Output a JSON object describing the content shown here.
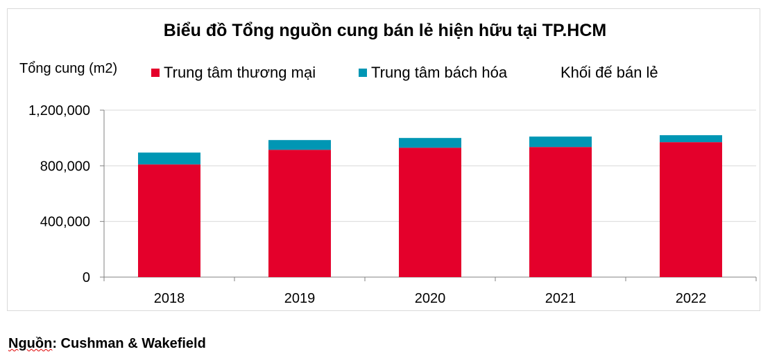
{
  "chart_data": {
    "type": "bar",
    "stacked": true,
    "title": "Biểu đồ Tổng nguồn cung bán lẻ hiện hữu tại TP.HCM",
    "ylabel": "Tổng cung (m2)",
    "xlabel": "",
    "categories": [
      "2018",
      "2019",
      "2020",
      "2021",
      "2022"
    ],
    "series": [
      {
        "name": "Trung tâm thương mại",
        "color": "#e4002b",
        "values": [
          810000,
          915000,
          930000,
          935000,
          970000
        ]
      },
      {
        "name": "Trung tâm bách hóa",
        "color": "#0096b4",
        "values": [
          85000,
          70000,
          70000,
          75000,
          50000
        ]
      },
      {
        "name": "Khối đế bán lẻ",
        "color": "#ffffff",
        "values": [
          0,
          0,
          0,
          0,
          0
        ]
      }
    ],
    "ylim": [
      0,
      1200000
    ],
    "yticks": [
      "0",
      "400,000",
      "800,000",
      "1,200,000"
    ],
    "grid": true,
    "legend_position": "top"
  },
  "source": {
    "label_underlined": "Nguồn",
    "label_rest": ": Cushman & Wakefield"
  }
}
